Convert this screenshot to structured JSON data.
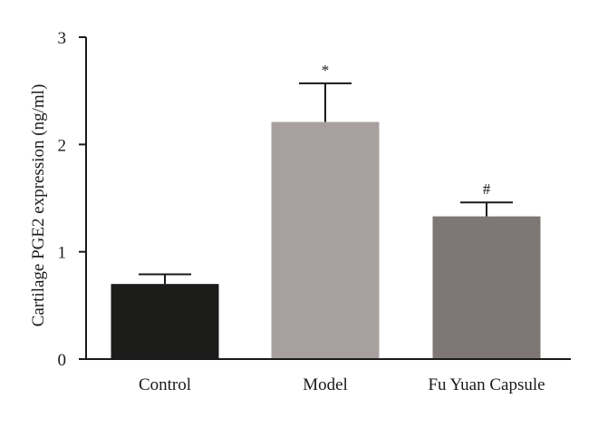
{
  "chart_data": {
    "type": "bar",
    "title": "",
    "xlabel": "",
    "ylabel": "Cartilage PGE2 expression (ng/ml)",
    "ylim": [
      0,
      3
    ],
    "yticks": [
      0,
      1,
      2,
      3
    ],
    "categories": [
      "Control",
      "Model",
      "Fu Yuan Capsule"
    ],
    "values": [
      0.7,
      2.21,
      1.33
    ],
    "error_plus": [
      0.09,
      0.36,
      0.13
    ],
    "annotations": [
      "",
      "*",
      "#"
    ],
    "bar_colors": [
      "#1c1c1a",
      "#a8a09e",
      "#7f7775"
    ],
    "grid": false,
    "legend": "none"
  },
  "colors": {
    "axis": "#1a1a1a",
    "error_bar": "#1a1a1a",
    "background": "#ffffff"
  }
}
